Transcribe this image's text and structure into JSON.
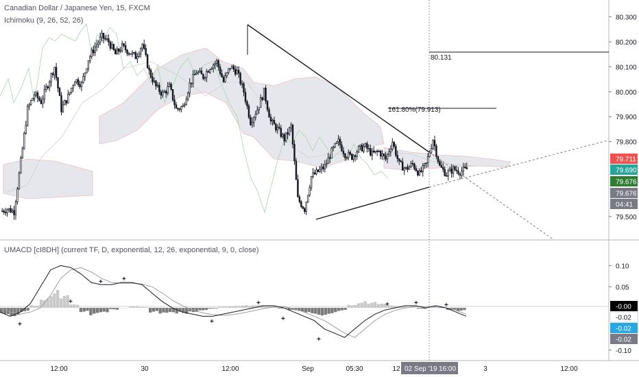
{
  "legend": {
    "title": "Canadian Dollar / Japanese Yen, 15, FXCM",
    "ichimoku": "Ichimoku (9, 26, 52, 26)",
    "macd": "UMACD [cI8DH] (current TF, D, exponential, 12, 26, exponential, 9, 0, close)"
  },
  "annotations": {
    "level": "80.131",
    "fib": "161.80%(79.913)"
  },
  "price_tags": [
    {
      "text": "79.711",
      "color": "#ef5350"
    },
    {
      "text": "79.690",
      "color": "#26a69a"
    },
    {
      "text": "79.676",
      "color": "#2e7d32"
    },
    {
      "text": "79.676",
      "color": "#787b86"
    },
    {
      "text": "04:41",
      "color": "#787b86"
    }
  ],
  "macd_tags": [
    {
      "text": "-0.00",
      "color": "#000000"
    },
    {
      "text": "-0.02",
      "color": "#ffffff",
      "fg": "#131722"
    },
    {
      "text": "-0.02",
      "color": "#29a7e1"
    },
    {
      "text": "-0.02",
      "color": "#787b86"
    }
  ],
  "crosshair": {
    "date": "02 Sep '19",
    "time": "16:00"
  },
  "chart_data": [
    {
      "type": "candlestick",
      "title": "Canadian Dollar / Japanese Yen, 15, FXCM",
      "ylim": [
        79.42,
        80.34
      ],
      "y_ticks": [
        "80.300",
        "80.200",
        "80.100",
        "80.000",
        "79.900",
        "79.800",
        "79.500"
      ],
      "x_ticks": [
        "12:00",
        "30",
        "12:00",
        "Sep",
        "05:30",
        "12",
        "3",
        "12:00"
      ],
      "path": [
        79.52,
        79.53,
        79.52,
        79.72,
        79.93,
        79.99,
        79.96,
        80.03,
        80.1,
        79.93,
        79.98,
        80.05,
        80.03,
        80.13,
        80.18,
        80.22,
        80.2,
        80.15,
        80.18,
        80.16,
        80.14,
        80.19,
        80.08,
        80.02,
        79.99,
        80.02,
        79.93,
        79.94,
        80.03,
        80.08,
        80.06,
        80.1,
        80.12,
        80.04,
        80.1,
        80.08,
        80.0,
        79.88,
        79.93,
        80.0,
        79.88,
        79.85,
        79.81,
        79.86,
        79.57,
        79.53,
        79.66,
        79.68,
        79.7,
        79.76,
        79.8,
        79.75,
        79.74,
        79.77,
        79.78,
        79.75,
        79.76,
        79.73,
        79.8,
        79.71,
        79.69,
        79.71,
        79.67,
        79.71,
        79.81,
        79.7,
        79.67,
        79.69,
        79.68,
        79.69
      ],
      "annotations": [
        "80.131",
        "161.80%(79.913)"
      ]
    },
    {
      "type": "histogram+line",
      "title": "UMACD [cI8DH] (current TF, D, exponential, 12, 26, exponential, 9, 0, close)",
      "ylim": [
        -0.115,
        0.125
      ],
      "y_ticks": [
        "0.10",
        "0.05",
        "-0.10"
      ],
      "macd": [
        -0.01,
        -0.02,
        -0.01,
        0.01,
        0.05,
        0.09,
        0.1,
        0.095,
        0.08,
        0.06,
        0.055,
        0.055,
        0.06,
        0.06,
        0.055,
        0.035,
        0.015,
        0.0,
        -0.01,
        -0.015,
        -0.02,
        -0.02,
        -0.015,
        -0.01,
        -0.005,
        0.0,
        0.005,
        0.005,
        0.0,
        -0.01,
        -0.02,
        -0.03,
        -0.05,
        -0.06,
        -0.07,
        -0.05,
        -0.03,
        -0.015,
        -0.005,
        0.0,
        0.005,
        0.005,
        0.0,
        0.005,
        0.0,
        -0.01,
        -0.02
      ],
      "signal": [
        0.0,
        -0.01,
        -0.015,
        -0.01,
        0.0,
        0.03,
        0.07,
        0.09,
        0.095,
        0.085,
        0.07,
        0.06,
        0.058,
        0.058,
        0.056,
        0.05,
        0.035,
        0.018,
        0.005,
        -0.005,
        -0.012,
        -0.016,
        -0.018,
        -0.016,
        -0.012,
        -0.007,
        -0.002,
        0.002,
        0.003,
        -0.002,
        -0.01,
        -0.02,
        -0.03,
        -0.045,
        -0.06,
        -0.07,
        -0.05,
        -0.03,
        -0.015,
        -0.006,
        0.0,
        0.003,
        0.003,
        0.002,
        0.0,
        -0.006,
        -0.015
      ],
      "histogram": [
        -0.015,
        -0.02,
        -0.01,
        0.008,
        0.03,
        0.045,
        0.03,
        0.008,
        -0.01,
        -0.02,
        -0.015,
        -0.005,
        0.0,
        0.004,
        0.002,
        -0.012,
        -0.018,
        -0.016,
        -0.014,
        -0.01,
        -0.006,
        -0.002,
        0.004,
        0.006,
        0.007,
        0.006,
        0.006,
        0.004,
        -0.002,
        -0.008,
        -0.012,
        -0.014,
        -0.018,
        -0.014,
        -0.008,
        0.01,
        0.018,
        0.014,
        0.01,
        0.006,
        0.004,
        0.002,
        -0.003,
        0.003,
        0.0,
        -0.005,
        -0.008
      ]
    }
  ]
}
